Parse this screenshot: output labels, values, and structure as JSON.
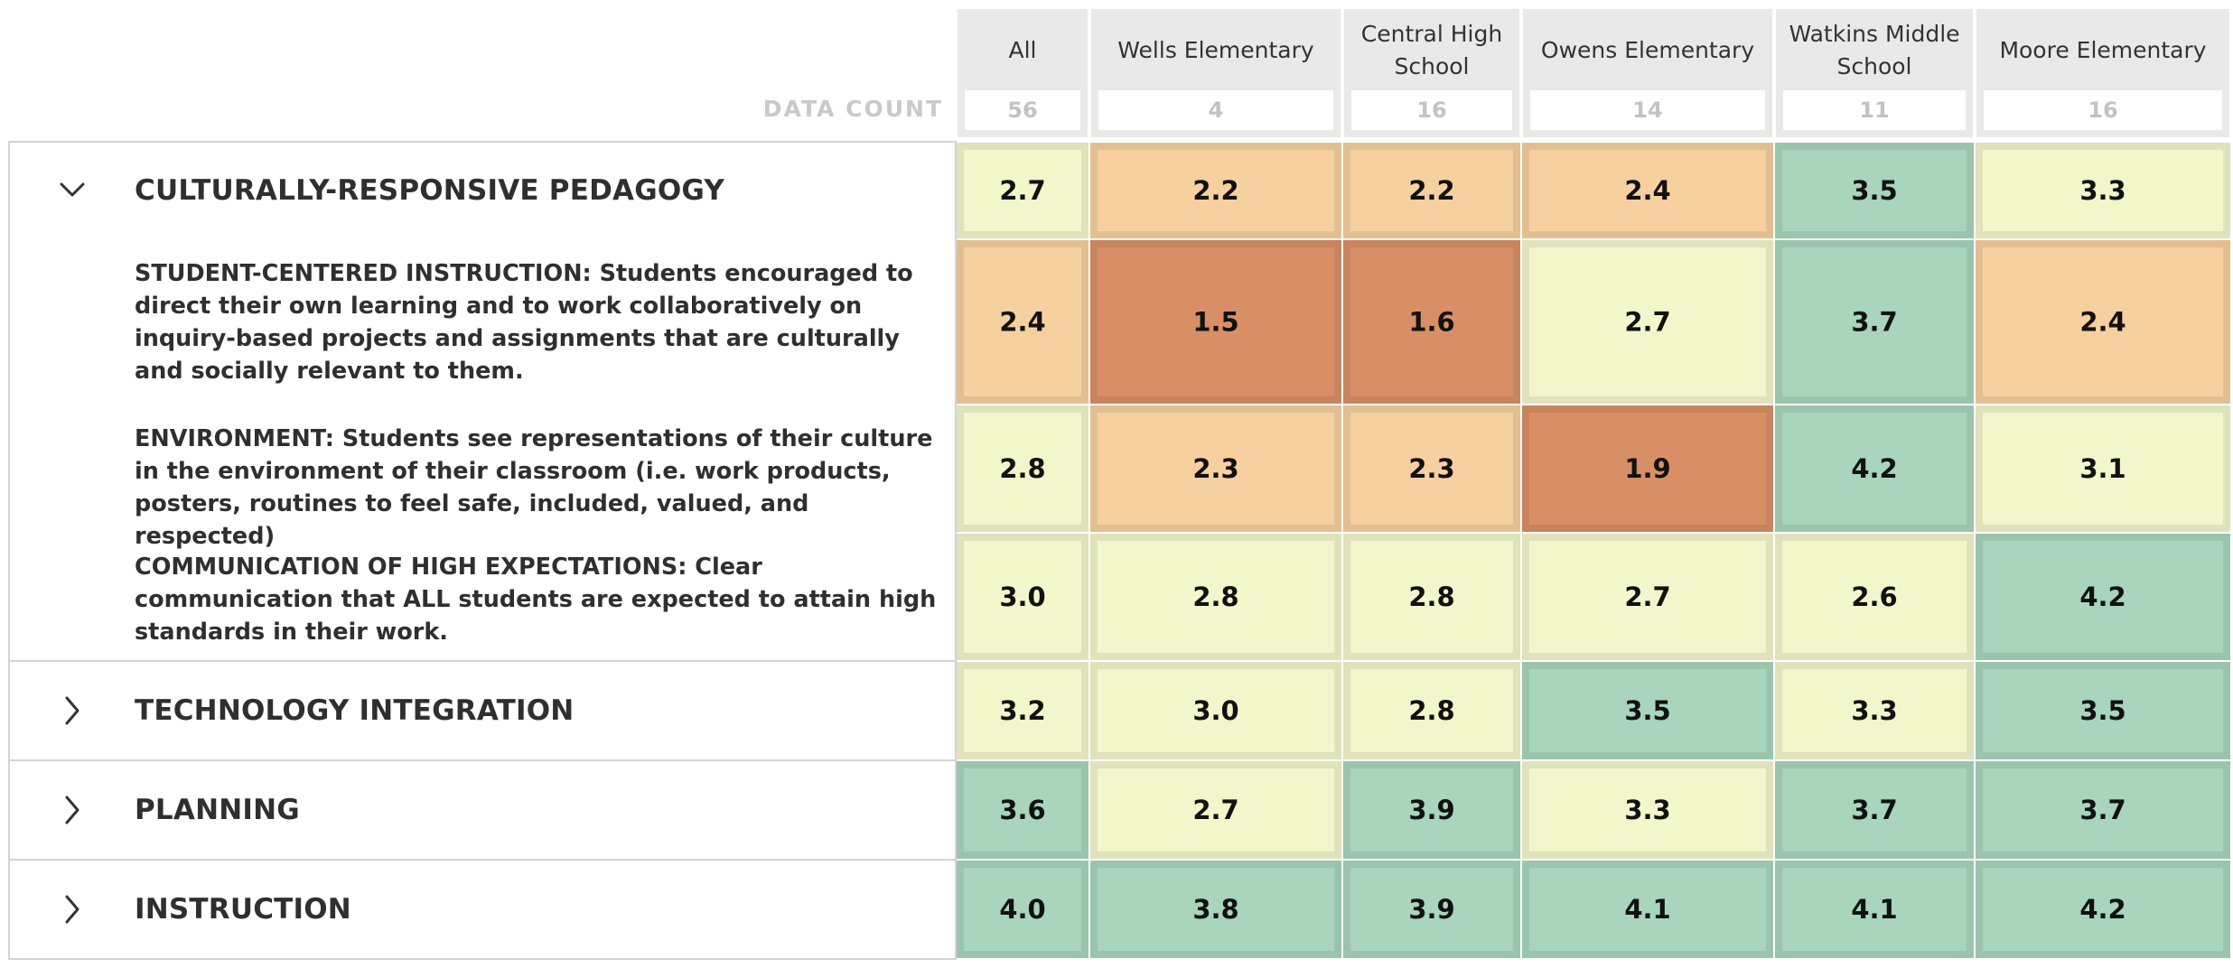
{
  "data_count_label": "DATA COUNT",
  "colors": {
    "orange_dark": "#d98f66",
    "orange_light": "#f6d09f",
    "yellow": "#f2f6cb",
    "green": "#a8d5bb"
  },
  "chart_data": {
    "type": "heatmap",
    "columns": [
      {
        "name": "All",
        "count": "56"
      },
      {
        "name": "Wells Elementary",
        "count": "4"
      },
      {
        "name": "Central High School",
        "count": "16"
      },
      {
        "name": "Owens Elementary",
        "count": "14"
      },
      {
        "name": "Watkins Middle School",
        "count": "11"
      },
      {
        "name": "Moore Elementary",
        "count": "16"
      }
    ],
    "rows": [
      {
        "label": "CULTURALLY-RESPONSIVE PEDAGOGY",
        "group": true,
        "expanded": true,
        "values": [
          "2.7",
          "2.2",
          "2.2",
          "2.4",
          "3.5",
          "3.3"
        ]
      },
      {
        "label": "STUDENT-CENTERED INSTRUCTION: Students encouraged to direct their own learning and to work collaboratively on inquiry-based projects and assignments that are culturally and socially relevant to them.",
        "group": false,
        "values": [
          "2.4",
          "1.5",
          "1.6",
          "2.7",
          "3.7",
          "2.4"
        ]
      },
      {
        "label": "ENVIRONMENT: Students see representations of their culture in the environment of their classroom (i.e. work products, posters, routines to feel safe, included, valued, and respected)",
        "group": false,
        "values": [
          "2.8",
          "2.3",
          "2.3",
          "1.9",
          "4.2",
          "3.1"
        ]
      },
      {
        "label": "COMMUNICATION OF HIGH EXPECTATIONS: Clear communication that ALL students are expected to attain high standards in their work.",
        "group": false,
        "values": [
          "3.0",
          "2.8",
          "2.8",
          "2.7",
          "2.6",
          "4.2"
        ]
      },
      {
        "label": "TECHNOLOGY INTEGRATION",
        "group": true,
        "expanded": false,
        "values": [
          "3.2",
          "3.0",
          "2.8",
          "3.5",
          "3.3",
          "3.5"
        ]
      },
      {
        "label": "PLANNING",
        "group": true,
        "expanded": false,
        "values": [
          "3.6",
          "2.7",
          "3.9",
          "3.3",
          "3.7",
          "3.7"
        ]
      },
      {
        "label": "INSTRUCTION",
        "group": true,
        "expanded": false,
        "values": [
          "4.0",
          "3.8",
          "3.9",
          "4.1",
          "4.1",
          "4.2"
        ]
      }
    ]
  }
}
